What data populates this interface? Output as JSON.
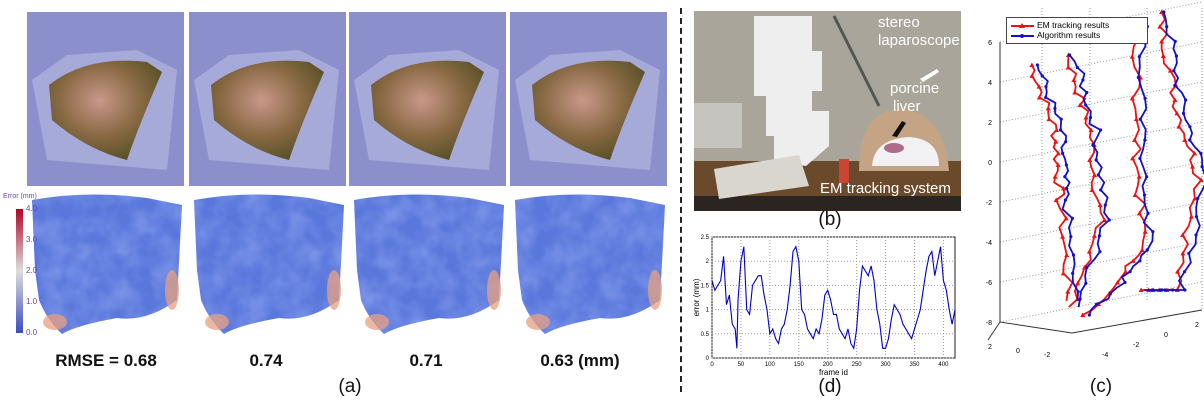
{
  "panel_a": {
    "label": "(a)",
    "colorbar": {
      "title": "Error (mm)",
      "ticks": [
        "4.0",
        "3.0",
        "2.0",
        "1.0",
        "0.0"
      ],
      "low_color": "#3b4cc0",
      "high_color": "#b40426"
    },
    "rmse_labels": [
      "RMSE = 0.68",
      "0.74",
      "0.71",
      "0.63 (mm)"
    ],
    "render_background": "#8b8fcc"
  },
  "panel_b": {
    "label": "(b)",
    "annotations": [
      "stereo",
      "laparoscope",
      "porcine",
      "liver",
      "EM tracking system"
    ]
  },
  "panel_c": {
    "label": "(c)"
  },
  "panel_d": {
    "label": "(d)"
  },
  "chart_data": [
    {
      "type": "line",
      "panel": "(d)",
      "xlabel": "frame id",
      "ylabel": "error (mm)",
      "xlim": [
        0,
        420
      ],
      "ylim": [
        0,
        2.5
      ],
      "xticks": [
        "0",
        "50",
        "100",
        "150",
        "200",
        "250",
        "300",
        "350",
        "400"
      ],
      "yticks": [
        "0",
        "0.5",
        "1",
        "1.5",
        "2",
        "2.5"
      ],
      "grid": true,
      "color": "#0000cc",
      "x": [
        0,
        5,
        10,
        15,
        20,
        25,
        30,
        35,
        40,
        43,
        45,
        50,
        55,
        60,
        65,
        70,
        75,
        80,
        85,
        90,
        95,
        100,
        105,
        110,
        115,
        120,
        125,
        130,
        135,
        140,
        145,
        150,
        155,
        160,
        165,
        170,
        175,
        180,
        185,
        190,
        195,
        200,
        205,
        210,
        215,
        220,
        225,
        230,
        235,
        240,
        245,
        250,
        255,
        260,
        265,
        270,
        275,
        280,
        285,
        290,
        295,
        300,
        305,
        310,
        315,
        320,
        325,
        330,
        335,
        340,
        345,
        350,
        355,
        360,
        365,
        370,
        375,
        380,
        385,
        390,
        395,
        400,
        405,
        410,
        415,
        420
      ],
      "y": [
        1.6,
        1.4,
        1.5,
        1.6,
        2.1,
        1.1,
        1.3,
        0.7,
        0.6,
        0.2,
        1.2,
        2.0,
        2.3,
        1.0,
        0.9,
        1.5,
        1.6,
        1.7,
        1.7,
        1.3,
        1.0,
        0.5,
        0.6,
        0.4,
        0.3,
        0.6,
        0.7,
        1.0,
        1.5,
        2.2,
        2.3,
        2.0,
        1.0,
        0.9,
        0.6,
        0.5,
        0.4,
        0.6,
        0.5,
        0.8,
        1.3,
        1.4,
        1.2,
        0.9,
        0.9,
        0.6,
        0.5,
        0.4,
        0.6,
        0.3,
        0.2,
        0.6,
        1.4,
        1.9,
        1.8,
        1.7,
        1.9,
        1.6,
        1.0,
        0.7,
        0.2,
        0.2,
        0.4,
        0.8,
        1.1,
        1.0,
        0.9,
        0.7,
        0.6,
        0.5,
        0.4,
        0.6,
        0.8,
        1.0,
        1.4,
        1.8,
        2.1,
        2.2,
        1.7,
        2.0,
        2.3,
        1.6,
        1.4,
        1.0,
        0.7,
        1.0
      ]
    },
    {
      "type": "line",
      "panel": "(c)",
      "projection": "3d",
      "zticks": [
        "6",
        "4",
        "2",
        "0",
        "-2",
        "-4",
        "-6",
        "-8"
      ],
      "xticks_left": [
        "2",
        "0",
        "-2"
      ],
      "xticks_right": [
        "-4",
        "-2",
        "0",
        "2"
      ],
      "grid": true,
      "legend": "top-left",
      "series": [
        {
          "name": "EM tracking results",
          "color": "#ee1111",
          "marker": "triangle"
        },
        {
          "name": "Algorithm results",
          "color": "#1111cc",
          "marker": "dot"
        }
      ]
    }
  ]
}
